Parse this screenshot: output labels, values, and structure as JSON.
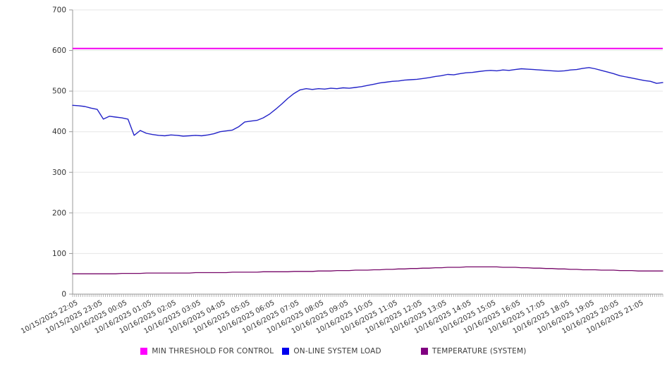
{
  "chart_data": {
    "type": "line",
    "title": "",
    "xlabel": "",
    "ylabel": "",
    "ylim": [
      0,
      700
    ],
    "y_ticks": [
      0,
      100,
      200,
      300,
      400,
      500,
      600,
      700
    ],
    "grid": true,
    "legend_position": "bottom",
    "x_total_minutes": 1440,
    "x_label_interval_minutes": 60,
    "minor_tick_interval_minutes": 5,
    "sample_interval_minutes": 15,
    "x_tick_labels": [
      "10/15/2025 22:05",
      "10/15/2025 23:05",
      "10/16/2025 00:05",
      "10/16/2025 01:05",
      "10/16/2025 02:05",
      "10/16/2025 03:05",
      "10/16/2025 04:05",
      "10/16/2025 05:05",
      "10/16/2025 06:05",
      "10/16/2025 07:05",
      "10/16/2025 08:05",
      "10/16/2025 09:05",
      "10/16/2025 10:05",
      "10/16/2025 11:05",
      "10/16/2025 12:05",
      "10/16/2025 13:05",
      "10/16/2025 14:05",
      "10/16/2025 15:05",
      "10/16/2025 16:05",
      "10/16/2025 17:05",
      "10/16/2025 18:05",
      "10/16/2025 19:05",
      "10/16/2025 20:05",
      "10/16/2025 21:05"
    ],
    "series": [
      {
        "name": "MIN THRESHOLD FOR CONTROL",
        "color": "#f400f0",
        "style": "threshold",
        "stroke_width": 2,
        "value": 605
      },
      {
        "name": "ON-LINE SYSTEM LOAD",
        "color": "#2323c8",
        "style": "line",
        "stroke_width": 1.4,
        "values": [
          465,
          464,
          462,
          458,
          455,
          431,
          438,
          436,
          434,
          431,
          391,
          403,
          396,
          393,
          391,
          390,
          392,
          391,
          389,
          390,
          391,
          390,
          392,
          395,
          400,
          402,
          404,
          412,
          424,
          426,
          428,
          434,
          443,
          455,
          468,
          482,
          494,
          503,
          506,
          504,
          506,
          505,
          507,
          506,
          508,
          507,
          509,
          511,
          514,
          517,
          520,
          522,
          524,
          525,
          527,
          528,
          529,
          531,
          533,
          536,
          538,
          541,
          540,
          543,
          545,
          546,
          548,
          550,
          551,
          550,
          552,
          551,
          553,
          555,
          554,
          553,
          552,
          551,
          550,
          549,
          550,
          552,
          553,
          556,
          558,
          555,
          551,
          547,
          543,
          538,
          535,
          532,
          529,
          526,
          524,
          519,
          521
        ]
      },
      {
        "name": "TEMPERATURE (SYSTEM)",
        "color": "#760668",
        "style": "line",
        "stroke_width": 1.3,
        "values": [
          50,
          50,
          50,
          50,
          50,
          50,
          50,
          50,
          51,
          51,
          51,
          51,
          52,
          52,
          52,
          52,
          52,
          52,
          52,
          52,
          53,
          53,
          53,
          53,
          53,
          53,
          54,
          54,
          54,
          54,
          54,
          55,
          55,
          55,
          55,
          55,
          56,
          56,
          56,
          56,
          57,
          57,
          57,
          58,
          58,
          58,
          59,
          59,
          59,
          60,
          60,
          61,
          61,
          62,
          62,
          63,
          63,
          64,
          64,
          65,
          65,
          66,
          66,
          66,
          67,
          67,
          67,
          67,
          67,
          67,
          66,
          66,
          66,
          65,
          65,
          64,
          64,
          63,
          63,
          62,
          62,
          61,
          61,
          60,
          60,
          60,
          59,
          59,
          59,
          58,
          58,
          58,
          57,
          57,
          57,
          57,
          57
        ]
      }
    ]
  },
  "legend": {
    "items": [
      {
        "label": "MIN THRESHOLD FOR CONTROL",
        "color": "#ff00ff"
      },
      {
        "label": "ON-LINE SYSTEM LOAD",
        "color": "#0000ee"
      },
      {
        "label": "TEMPERATURE (SYSTEM)",
        "color": "#800080"
      }
    ]
  },
  "style": {
    "grid_color": "#e6e6e6",
    "axis_color": "#999999",
    "tick_label_color": "#333333",
    "background": "#ffffff"
  }
}
